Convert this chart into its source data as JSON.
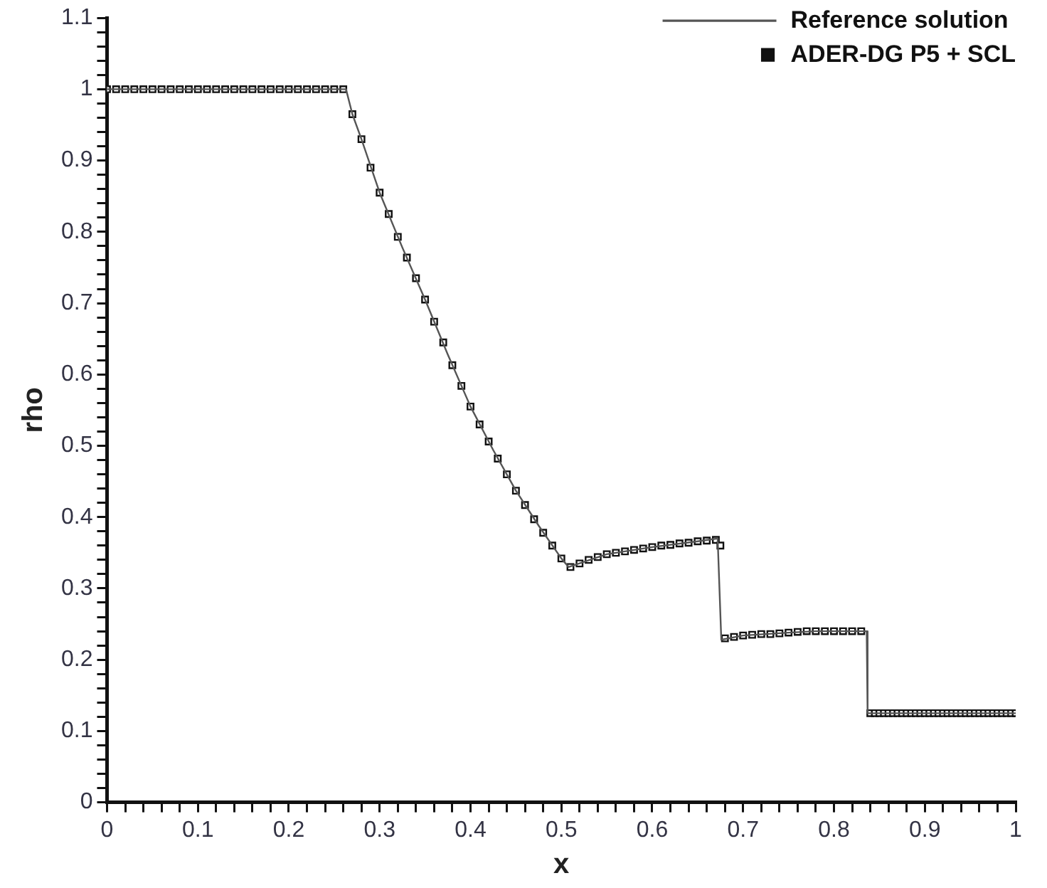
{
  "chart_data": {
    "type": "line",
    "xlabel": "x",
    "ylabel": "rho",
    "xlim": [
      0,
      1
    ],
    "ylim": [
      0,
      1.1
    ],
    "grid": false,
    "legend": "top right",
    "xticks": [
      0,
      {
        "value": 0.02,
        "label": null
      },
      {
        "value": 0.04,
        "label": null
      },
      {
        "value": 0.06,
        "label": null
      },
      {
        "value": 0.08,
        "label": null
      },
      0.1,
      {
        "value": 0.12,
        "label": null
      },
      {
        "value": 0.14,
        "label": null
      },
      {
        "value": 0.16,
        "label": null
      },
      {
        "value": 0.18,
        "label": null
      },
      0.2,
      {
        "value": 0.22,
        "label": null
      },
      {
        "value": 0.24,
        "label": null
      },
      {
        "value": 0.26,
        "label": null
      },
      {
        "value": 0.28,
        "label": null
      },
      0.3,
      {
        "value": 0.32,
        "label": null
      },
      {
        "value": 0.34,
        "label": null
      },
      {
        "value": 0.36,
        "label": null
      },
      {
        "value": 0.38,
        "label": null
      },
      0.4,
      {
        "value": 0.42,
        "label": null
      },
      {
        "value": 0.44,
        "label": null
      },
      {
        "value": 0.46,
        "label": null
      },
      {
        "value": 0.48,
        "label": null
      },
      0.5,
      {
        "value": 0.52,
        "label": null
      },
      {
        "value": 0.54,
        "label": null
      },
      {
        "value": 0.56,
        "label": null
      },
      {
        "value": 0.58,
        "label": null
      },
      0.6,
      {
        "value": 0.62,
        "label": null
      },
      {
        "value": 0.64,
        "label": null
      },
      {
        "value": 0.66,
        "label": null
      },
      {
        "value": 0.68,
        "label": null
      },
      0.7,
      {
        "value": 0.72,
        "label": null
      },
      {
        "value": 0.74,
        "label": null
      },
      {
        "value": 0.76,
        "label": null
      },
      {
        "value": 0.78,
        "label": null
      },
      0.8,
      {
        "value": 0.82,
        "label": null
      },
      {
        "value": 0.84,
        "label": null
      },
      {
        "value": 0.86,
        "label": null
      },
      {
        "value": 0.88,
        "label": null
      },
      0.9,
      {
        "value": 0.92,
        "label": null
      },
      {
        "value": 0.94,
        "label": null
      },
      {
        "value": 0.96,
        "label": null
      },
      {
        "value": 0.98,
        "label": null
      },
      1
    ],
    "yticks": [
      0,
      {
        "value": 0.02,
        "label": null
      },
      {
        "value": 0.04,
        "label": null
      },
      {
        "value": 0.06,
        "label": null
      },
      {
        "value": 0.08,
        "label": null
      },
      0.1,
      {
        "value": 0.12,
        "label": null
      },
      {
        "value": 0.14,
        "label": null
      },
      {
        "value": 0.16,
        "label": null
      },
      {
        "value": 0.18,
        "label": null
      },
      0.2,
      {
        "value": 0.22,
        "label": null
      },
      {
        "value": 0.24,
        "label": null
      },
      {
        "value": 0.26,
        "label": null
      },
      {
        "value": 0.28,
        "label": null
      },
      0.3,
      {
        "value": 0.32,
        "label": null
      },
      {
        "value": 0.34,
        "label": null
      },
      {
        "value": 0.36,
        "label": null
      },
      {
        "value": 0.38,
        "label": null
      },
      0.4,
      {
        "value": 0.42,
        "label": null
      },
      {
        "value": 0.44,
        "label": null
      },
      {
        "value": 0.46,
        "label": null
      },
      {
        "value": 0.48,
        "label": null
      },
      0.5,
      {
        "value": 0.52,
        "label": null
      },
      {
        "value": 0.54,
        "label": null
      },
      {
        "value": 0.56,
        "label": null
      },
      {
        "value": 0.58,
        "label": null
      },
      0.6,
      {
        "value": 0.62,
        "label": null
      },
      {
        "value": 0.64,
        "label": null
      },
      {
        "value": 0.66,
        "label": null
      },
      {
        "value": 0.68,
        "label": null
      },
      0.7,
      {
        "value": 0.72,
        "label": null
      },
      {
        "value": 0.74,
        "label": null
      },
      {
        "value": 0.76,
        "label": null
      },
      {
        "value": 0.78,
        "label": null
      },
      0.8,
      {
        "value": 0.82,
        "label": null
      },
      {
        "value": 0.84,
        "label": null
      },
      {
        "value": 0.86,
        "label": null
      },
      {
        "value": 0.88,
        "label": null
      },
      0.9,
      {
        "value": 0.92,
        "label": null
      },
      {
        "value": 0.94,
        "label": null
      },
      {
        "value": 0.96,
        "label": null
      },
      {
        "value": 0.98,
        "label": null
      },
      1,
      {
        "value": 1.02,
        "label": null
      },
      {
        "value": 1.04,
        "label": null
      },
      {
        "value": 1.06,
        "label": null
      },
      {
        "value": 1.08,
        "label": null
      },
      1.1
    ],
    "series": [
      {
        "name": "Reference solution",
        "type": "line",
        "marker": "none",
        "line_style": "solid",
        "color": "#555555",
        "x": [
          0,
          0.263,
          0.27,
          0.28,
          0.3,
          0.325,
          0.35,
          0.375,
          0.4,
          0.425,
          0.45,
          0.475,
          0.5,
          0.508,
          0.55,
          0.6,
          0.65,
          0.672,
          0.676,
          0.7,
          0.75,
          0.78,
          0.836,
          0.837,
          1
        ],
        "values": [
          1,
          1,
          0.965,
          0.93,
          0.855,
          0.778,
          0.705,
          0.628,
          0.555,
          0.494,
          0.437,
          0.388,
          0.342,
          0.33,
          0.348,
          0.358,
          0.366,
          0.37,
          0.228,
          0.234,
          0.238,
          0.24,
          0.24,
          0.125,
          0.125
        ]
      },
      {
        "name": "ADER-DG P5 + SCL",
        "type": "scatter",
        "marker": "square",
        "color": "#111111",
        "x": [
          0,
          0.01,
          0.02,
          0.03,
          0.04,
          0.05,
          0.06,
          0.07,
          0.08,
          0.09,
          0.1,
          0.11,
          0.12,
          0.13,
          0.14,
          0.15,
          0.16,
          0.17,
          0.18,
          0.19,
          0.2,
          0.21,
          0.22,
          0.23,
          0.24,
          0.25,
          0.26,
          0.27,
          0.28,
          0.29,
          0.3,
          0.31,
          0.32,
          0.33,
          0.34,
          0.35,
          0.36,
          0.37,
          0.38,
          0.39,
          0.4,
          0.41,
          0.42,
          0.43,
          0.44,
          0.45,
          0.46,
          0.47,
          0.48,
          0.49,
          0.5,
          0.51,
          0.52,
          0.53,
          0.54,
          0.55,
          0.56,
          0.57,
          0.58,
          0.59,
          0.6,
          0.61,
          0.62,
          0.63,
          0.64,
          0.65,
          0.66,
          0.67,
          0.675,
          0.68,
          0.69,
          0.7,
          0.71,
          0.72,
          0.73,
          0.74,
          0.75,
          0.76,
          0.77,
          0.78,
          0.79,
          0.8,
          0.81,
          0.82,
          0.83,
          0.84,
          0.845,
          0.85,
          0.855,
          0.86,
          0.865,
          0.87,
          0.875,
          0.88,
          0.885,
          0.89,
          0.895,
          0.9,
          0.905,
          0.91,
          0.915,
          0.92,
          0.925,
          0.93,
          0.935,
          0.94,
          0.945,
          0.95,
          0.955,
          0.96,
          0.965,
          0.97,
          0.975,
          0.98,
          0.985,
          0.99,
          0.995,
          1
        ],
        "values": [
          1,
          1,
          1,
          1,
          1,
          1,
          1,
          1,
          1,
          1,
          1,
          1,
          1,
          1,
          1,
          1,
          1,
          1,
          1,
          1,
          1,
          1,
          1,
          1,
          1,
          1,
          1,
          0.965,
          0.93,
          0.89,
          0.855,
          0.825,
          0.793,
          0.764,
          0.735,
          0.705,
          0.674,
          0.645,
          0.613,
          0.584,
          0.555,
          0.53,
          0.506,
          0.482,
          0.46,
          0.437,
          0.417,
          0.397,
          0.378,
          0.36,
          0.342,
          0.33,
          0.335,
          0.34,
          0.344,
          0.348,
          0.35,
          0.352,
          0.354,
          0.356,
          0.358,
          0.36,
          0.361,
          0.363,
          0.364,
          0.366,
          0.367,
          0.368,
          0.36,
          0.23,
          0.232,
          0.234,
          0.235,
          0.236,
          0.236,
          0.237,
          0.238,
          0.239,
          0.24,
          0.24,
          0.24,
          0.24,
          0.24,
          0.24,
          0.24,
          0.125,
          0.125,
          0.125,
          0.125,
          0.125,
          0.125,
          0.125,
          0.125,
          0.125,
          0.125,
          0.125,
          0.125,
          0.125,
          0.125,
          0.125,
          0.125,
          0.125,
          0.125,
          0.125,
          0.125,
          0.125,
          0.125,
          0.125,
          0.125,
          0.125,
          0.125,
          0.125,
          0.125,
          0.125,
          0.125,
          0.125,
          0.125,
          0.125
        ]
      }
    ]
  }
}
